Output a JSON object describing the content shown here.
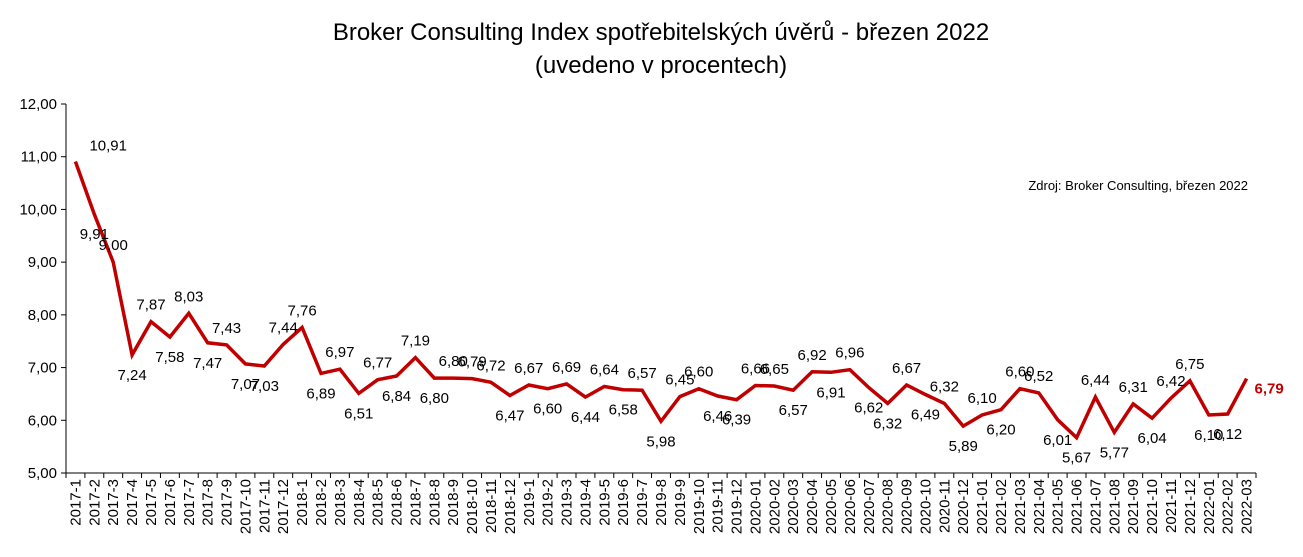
{
  "chart_data": {
    "type": "line",
    "title": "Broker Consulting Index spotřebitelských úvěrů - březen 2022",
    "subtitle": "(uvedeno v procentech)",
    "source_note": "Zdroj: Broker Consulting, březen 2022",
    "ylim": [
      5,
      12
    ],
    "yticks": [
      "5,00",
      "6,00",
      "7,00",
      "8,00",
      "9,00",
      "10,00",
      "11,00",
      "12,00"
    ],
    "grid": false,
    "line_color": "#c00000",
    "highlight_color": "#c00000",
    "categories": [
      "2017-1",
      "2017-2",
      "2017-3",
      "2017-4",
      "2017-5",
      "2017-6",
      "2017-7",
      "2017-8",
      "2017-9",
      "2017-10",
      "2017-11",
      "2017-12",
      "2018-1",
      "2018-2",
      "2018-3",
      "2018-4",
      "2018-5",
      "2018-6",
      "2018-7",
      "2018-8",
      "2018-9",
      "2018-10",
      "2018-11",
      "2018-12",
      "2019-1",
      "2019-2",
      "2019-3",
      "2019-4",
      "2019-5",
      "2019-6",
      "2019-7",
      "2019-8",
      "2019-9",
      "2019-10",
      "2019-11",
      "2019-12",
      "2020-01",
      "2020-02",
      "2020-03",
      "2020-04",
      "2020-05",
      "2020-06",
      "2020-07",
      "2020-08",
      "2020-09",
      "2020-10",
      "2020-11",
      "2020-12",
      "2021-01",
      "2021-02",
      "2021-03",
      "2021-04",
      "2021-05",
      "2021-06",
      "2021-07",
      "2021-08",
      "2021-09",
      "2021-10",
      "2021-11",
      "2021-12",
      "2022-01",
      "2022-02",
      "2022-03"
    ],
    "values": [
      10.91,
      9.91,
      9.0,
      7.24,
      7.87,
      7.58,
      8.03,
      7.47,
      7.43,
      7.07,
      7.03,
      7.44,
      7.76,
      6.89,
      6.97,
      6.51,
      6.77,
      6.84,
      7.19,
      6.8,
      6.8,
      6.79,
      6.72,
      6.47,
      6.67,
      6.6,
      6.69,
      6.44,
      6.64,
      6.58,
      6.57,
      5.98,
      6.45,
      6.6,
      6.46,
      6.39,
      6.66,
      6.65,
      6.57,
      6.92,
      6.91,
      6.96,
      6.62,
      6.32,
      6.67,
      6.49,
      6.32,
      5.89,
      6.1,
      6.2,
      6.6,
      6.52,
      6.01,
      5.67,
      6.44,
      5.77,
      6.31,
      6.04,
      6.42,
      6.75,
      6.1,
      6.12,
      6.79
    ],
    "data_labels": [
      "10,91",
      "9,91",
      "9,00",
      "7,24",
      "7,87",
      "7,58",
      "8,03",
      "7,47",
      "7,43",
      "7,07",
      "7,03",
      "7,44",
      "7,76",
      "6,89",
      "6,97",
      "6,51",
      "6,77",
      "6,84",
      "7,19",
      "6,80",
      "6,80",
      "6,79",
      "6,72",
      "6,47",
      "6,67",
      "6,60",
      "6,69",
      "6,44",
      "6,64",
      "6,58",
      "6,57",
      "5,98",
      "6,45",
      "6,60",
      "6,46",
      "6,39",
      "6,66",
      "6,65",
      "6,57",
      "6,92",
      "6,91",
      "6,96",
      "6,62",
      "6,32",
      "6,67",
      "6,49",
      "6,32",
      "5,89",
      "6,10",
      "6,20",
      "6,60",
      "6,52",
      "6,01",
      "5,67",
      "6,44",
      "5,77",
      "6,31",
      "6,04",
      "6,42",
      "6,75",
      "6,10",
      "6,12",
      "6,79"
    ]
  }
}
